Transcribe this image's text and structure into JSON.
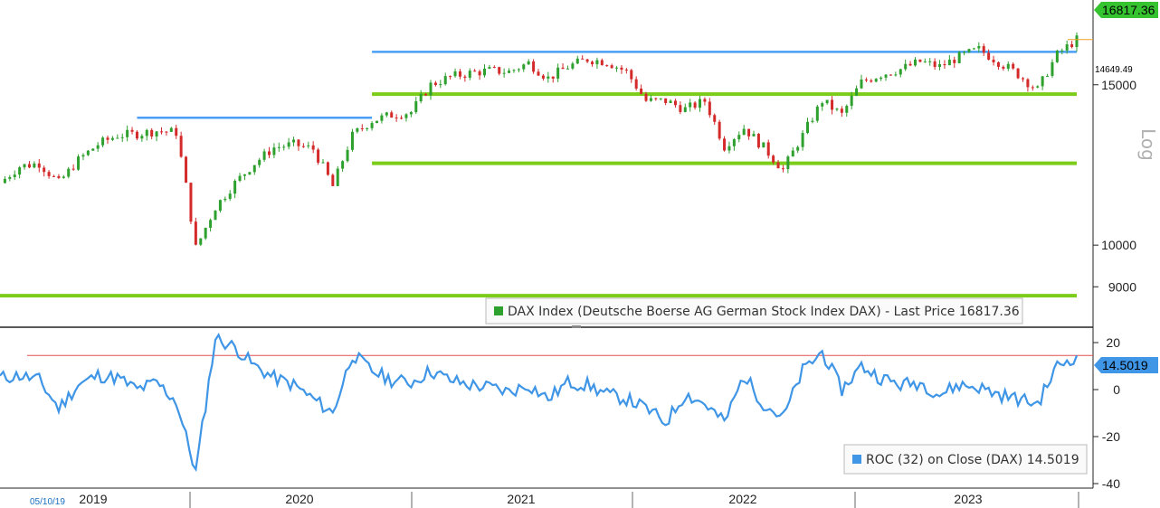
{
  "chart_data": [
    {
      "type": "candlestick",
      "title": "",
      "legend": "DAX Index (Deutsche Boerse AG German Stock Index DAX) - Last Price 16817.36",
      "legend_placement": "bottom-center",
      "scale": "log",
      "scale_label": "Log",
      "last_price_label": "16817.36",
      "secondary_price_label": "14649.49",
      "ylim": [
        8200,
        18500
      ],
      "yticks": [
        9000,
        10000,
        15000
      ],
      "ytick_labels": [
        "9000",
        "10000",
        "15000"
      ],
      "x_years": [
        "2019",
        "2020",
        "2021",
        "2022",
        "2023"
      ],
      "start_date_label": "05/10/19",
      "up_color": "#2ea02e",
      "down_color": "#d42a2a",
      "x": [
        "2019-05",
        "2019-06",
        "2019-07",
        "2019-08",
        "2019-09",
        "2019-10",
        "2019-11",
        "2019-12",
        "2020-01",
        "2020-02",
        "2020-03",
        "2020-04",
        "2020-05",
        "2020-06",
        "2020-07",
        "2020-08",
        "2020-09",
        "2020-10",
        "2020-11",
        "2020-12",
        "2021-01",
        "2021-02",
        "2021-03",
        "2021-04",
        "2021-05",
        "2021-06",
        "2021-07",
        "2021-08",
        "2021-09",
        "2021-10",
        "2021-11",
        "2021-12",
        "2022-01",
        "2022-02",
        "2022-03",
        "2022-04",
        "2022-05",
        "2022-06",
        "2022-07",
        "2022-08",
        "2022-09",
        "2022-10",
        "2022-11",
        "2022-12",
        "2023-01",
        "2023-02",
        "2023-03",
        "2023-04",
        "2023-05",
        "2023-06",
        "2023-07",
        "2023-08",
        "2023-09",
        "2023-10",
        "2023-11",
        "2023-12"
      ],
      "close": [
        11700,
        12200,
        12300,
        11700,
        12400,
        12900,
        13200,
        13250,
        13350,
        13300,
        9900,
        11000,
        11700,
        12300,
        12800,
        12900,
        12750,
        11600,
        13200,
        13700,
        13900,
        14000,
        15000,
        15300,
        15450,
        15550,
        15500,
        15850,
        15250,
        15700,
        16000,
        15900,
        15500,
        14400,
        14400,
        14100,
        14400,
        12850,
        13450,
        12800,
        12100,
        13200,
        14400,
        13900,
        15100,
        15400,
        15600,
        15900,
        15700,
        16100,
        16400,
        15900,
        15400,
        14800,
        16200,
        16817.36
      ],
      "series_levels": [
        {
          "name": "",
          "kind": "horizontal",
          "color": "#4a9ff5",
          "value": 13800,
          "x_range": [
            "2019-12",
            "2020-12"
          ]
        },
        {
          "name": "",
          "kind": "horizontal",
          "color": "#4a9ff5",
          "value": 16300,
          "x_range": [
            "2020-12",
            "2023-12"
          ]
        },
        {
          "name": "",
          "kind": "horizontal",
          "color": "#7ccc1a",
          "value": 14649.49,
          "x_range": [
            "2020-12",
            "2023-12"
          ]
        },
        {
          "name": "",
          "kind": "horizontal",
          "color": "#7ccc1a",
          "value": 12300,
          "x_range": [
            "2020-12",
            "2023-12"
          ]
        },
        {
          "name": "",
          "kind": "horizontal",
          "color": "#7ccc1a",
          "value": 8800,
          "x_range": [
            "2019-05",
            "2023-12"
          ]
        }
      ]
    },
    {
      "type": "line",
      "title": "",
      "legend": "ROC (32)  on Close (DAX) 14.5019",
      "legend_placement": "bottom-right",
      "last_value_label": "14.5019",
      "reference_line": 14.5019,
      "ylim": [
        -40,
        25
      ],
      "yticks": [
        20,
        0,
        -20,
        -40
      ],
      "ytick_labels": [
        "20",
        "0",
        "-20",
        "-40"
      ],
      "line_color": "#3f95e6",
      "x": [
        "2019-05",
        "2019-06",
        "2019-07",
        "2019-08",
        "2019-09",
        "2019-10",
        "2019-11",
        "2019-12",
        "2020-01",
        "2020-02",
        "2020-03",
        "2020-04",
        "2020-05",
        "2020-06",
        "2020-07",
        "2020-08",
        "2020-09",
        "2020-10",
        "2020-11",
        "2020-12",
        "2021-01",
        "2021-02",
        "2021-03",
        "2021-04",
        "2021-05",
        "2021-06",
        "2021-07",
        "2021-08",
        "2021-09",
        "2021-10",
        "2021-11",
        "2021-12",
        "2022-01",
        "2022-02",
        "2022-03",
        "2022-04",
        "2022-05",
        "2022-06",
        "2022-07",
        "2022-08",
        "2022-09",
        "2022-10",
        "2022-11",
        "2022-12",
        "2023-01",
        "2023-02",
        "2023-03",
        "2023-04",
        "2023-05",
        "2023-06",
        "2023-07",
        "2023-08",
        "2023-09",
        "2023-10",
        "2023-11",
        "2023-12"
      ],
      "values": [
        5,
        6,
        4,
        -8,
        2,
        6,
        5,
        0,
        3,
        -5,
        -35,
        22,
        18,
        10,
        5,
        2,
        -4,
        -10,
        15,
        8,
        4,
        3,
        8,
        4,
        2,
        1,
        -1,
        2,
        -4,
        3,
        2,
        -2,
        -4,
        -8,
        -14,
        -2,
        -6,
        -14,
        6,
        -6,
        -12,
        8,
        16,
        0,
        10,
        5,
        2,
        3,
        -2,
        2,
        1,
        -2,
        -4,
        -6,
        10,
        14.5019
      ]
    }
  ]
}
